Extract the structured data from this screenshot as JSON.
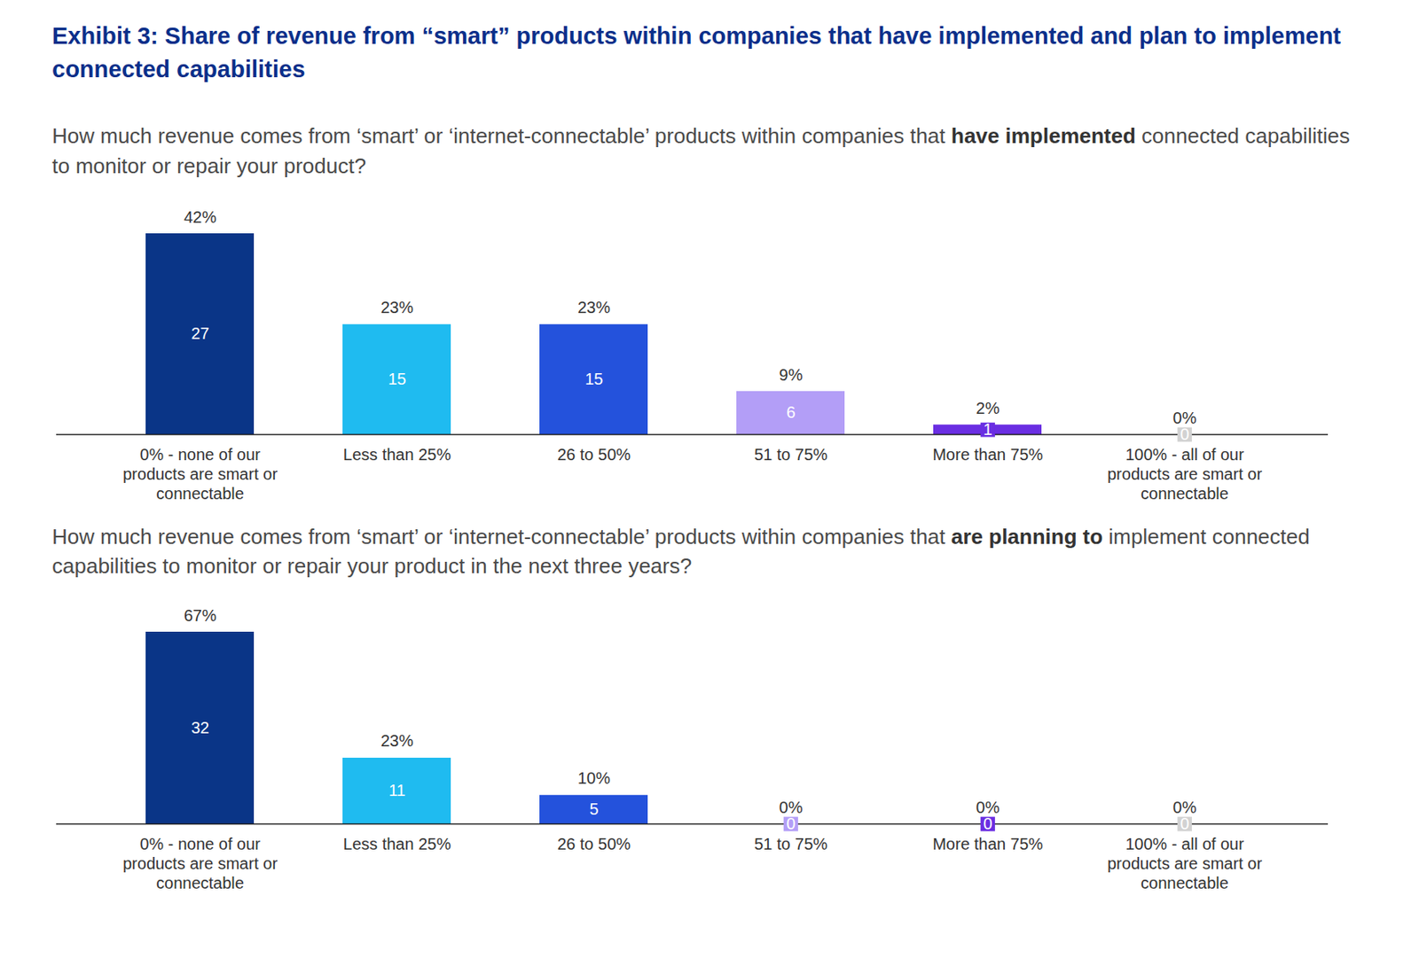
{
  "title": "Exhibit 3: Share of revenue from “smart” products within companies that have implemented and plan to implement connected capabilities",
  "chart_data": [
    {
      "type": "bar",
      "title": "How much revenue comes from ‘smart’ or ‘internet-connectable’ products within companies that have implemented connected capabilities to monitor or repair your product?",
      "title_bold": "have implemented",
      "categories": [
        "0% - none of our products are smart or connectable",
        "Less than 25%",
        "26 to 50%",
        "51 to 75%",
        "More than 75%",
        "100% - all of our products are smart or connectable"
      ],
      "values": [
        42,
        23,
        23,
        9,
        2,
        0
      ],
      "value_labels": [
        "42%",
        "23%",
        "23%",
        "9%",
        "2%",
        "0%"
      ],
      "counts": [
        27,
        15,
        15,
        6,
        1,
        0
      ],
      "colors": [
        "#0a3587",
        "#1fbbf0",
        "#2452dc",
        "#b39ef7",
        "#6a2ee2",
        "#d2d2d2"
      ],
      "ylim": [
        0,
        42
      ],
      "data_labels": true,
      "tick_labels": "x"
    },
    {
      "type": "bar",
      "title": "How much revenue comes from ‘smart’ or ‘internet-connectable’ products within companies that are planning to implement connected capabilities to monitor or repair your product in the next three years?",
      "title_bold": "are planning to",
      "categories": [
        "0% - none of our products are smart or connectable",
        "Less than 25%",
        "26 to 50%",
        "51 to 75%",
        "More than 75%",
        "100% - all of our products are smart or connectable"
      ],
      "values": [
        67,
        23,
        10,
        0,
        0,
        0
      ],
      "value_labels": [
        "67%",
        "23%",
        "10%",
        "0%",
        "0%",
        "0%"
      ],
      "counts": [
        32,
        11,
        5,
        0,
        0,
        0
      ],
      "colors": [
        "#0a3587",
        "#1fbbf0",
        "#2452dc",
        "#b39ef7",
        "#6a2ee2",
        "#d2d2d2"
      ],
      "ylim": [
        0,
        67
      ],
      "data_labels": true,
      "tick_labels": "x"
    }
  ]
}
